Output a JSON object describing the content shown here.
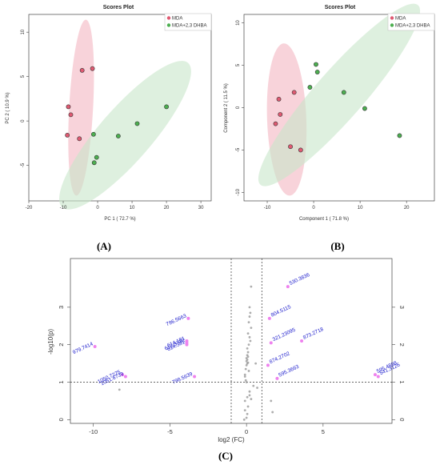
{
  "chart_data": [
    {
      "panel": "(A)",
      "type": "scatter",
      "title": "Scores Plot",
      "xlabel": "PC 1 ( 72.7 %)",
      "ylabel": "PC 2 ( 10.9 %)",
      "xlim": [
        -20,
        33
      ],
      "ylim": [
        -9,
        12
      ],
      "xticks": [
        -20,
        -10,
        0,
        10,
        20,
        30
      ],
      "yticks": [
        -5,
        0,
        5,
        10
      ],
      "legend_position": "top-right",
      "series": [
        {
          "name": "MDA",
          "color": "#e05a72",
          "ellipse_color": "#f4b6c2",
          "points": [
            [
              -4.5,
              5.7
            ],
            [
              -1.5,
              5.9
            ],
            [
              -8.5,
              1.6
            ],
            [
              -7.8,
              0.7
            ],
            [
              -8.8,
              -1.6
            ],
            [
              -5.3,
              -2.0
            ]
          ],
          "ellipse": {
            "cx": -4.8,
            "cy": 1.5,
            "rx": 10.0,
            "ry": 3.3,
            "angle": -82
          }
        },
        {
          "name": "MDA+2,3 DHBA",
          "color": "#4caf50",
          "ellipse_color": "#c8e6c9",
          "points": [
            [
              20.0,
              1.6
            ],
            [
              11.5,
              -0.3
            ],
            [
              6.0,
              -1.7
            ],
            [
              -1.2,
              -1.5
            ],
            [
              -0.3,
              -4.1
            ],
            [
              -1.0,
              -4.7
            ]
          ],
          "ellipse": {
            "cx": 8.0,
            "cy": -1.6,
            "rx": 20.0,
            "ry": 3.2,
            "angle": -24
          }
        }
      ]
    },
    {
      "panel": "(B)",
      "type": "scatter",
      "title": "Scores Plot",
      "xlabel": "Component 1 ( 71.8 %)",
      "ylabel": "Component 2 ( 11.5 %)",
      "xlim": [
        -15,
        26
      ],
      "ylim": [
        -11,
        11
      ],
      "xticks": [
        -10,
        0,
        10,
        20
      ],
      "yticks": [
        -10,
        -5,
        0,
        5,
        10
      ],
      "legend_position": "top-right",
      "series": [
        {
          "name": "MDA",
          "color": "#e05a72",
          "ellipse_color": "#f4b6c2",
          "points": [
            [
              -7.5,
              1.0
            ],
            [
              -4.2,
              1.8
            ],
            [
              -7.2,
              -0.8
            ],
            [
              -8.2,
              -1.9
            ],
            [
              -5.0,
              -4.6
            ],
            [
              -2.8,
              -5.0
            ]
          ],
          "ellipse": {
            "cx": -5.8,
            "cy": -1.4,
            "rx": 9.0,
            "ry": 4.2,
            "angle": -94
          }
        },
        {
          "name": "MDA+2,3 DHBA",
          "color": "#4caf50",
          "ellipse_color": "#c8e6c9",
          "points": [
            [
              0.5,
              5.1
            ],
            [
              0.8,
              4.2
            ],
            [
              -0.8,
              2.4
            ],
            [
              6.5,
              1.8
            ],
            [
              11.0,
              -0.1
            ],
            [
              18.5,
              -3.3
            ]
          ],
          "ellipse": {
            "cx": 5.5,
            "cy": 1.5,
            "rx": 20.0,
            "ry": 3.2,
            "angle": -32
          }
        }
      ]
    },
    {
      "panel": "(C)",
      "type": "scatter",
      "title": "",
      "xlabel": "log2 (FC)",
      "ylabel": "-log10(p)",
      "xlim": [
        -11.5,
        9.5
      ],
      "ylim": [
        -0.1,
        4.3
      ],
      "xticks": [
        -10,
        -5,
        0,
        5
      ],
      "yticks": [
        0,
        1,
        2,
        3
      ],
      "thresholds": {
        "x": [
          -1,
          1
        ],
        "y": 1
      },
      "significant_color": "#ee82ee",
      "label_color": "#1a1acc",
      "labeled_points": [
        {
          "label": "530.3836",
          "x": 2.7,
          "y": 3.55
        },
        {
          "label": "804.5115",
          "x": 1.5,
          "y": 2.7
        },
        {
          "label": "321.23095",
          "x": 1.6,
          "y": 2.05
        },
        {
          "label": "873.2718",
          "x": 3.6,
          "y": 2.1
        },
        {
          "label": "874.2702",
          "x": 1.4,
          "y": 1.45
        },
        {
          "label": "595.3663",
          "x": 2.0,
          "y": 1.1
        },
        {
          "label": "796.5663",
          "x": -3.8,
          "y": 2.7
        },
        {
          "label": "612.3732",
          "x": -3.9,
          "y": 2.05
        },
        {
          "label": "614.181",
          "x": -3.9,
          "y": 2.1
        },
        {
          "label": "614.381",
          "x": -3.9,
          "y": 2.0
        },
        {
          "label": "798.5639",
          "x": -3.4,
          "y": 1.15
        },
        {
          "label": "979.7414",
          "x": -9.9,
          "y": 1.95
        },
        {
          "label": "1050.7275",
          "x": -8.1,
          "y": 1.2
        },
        {
          "label": "1051.6739",
          "x": -7.9,
          "y": 1.15
        },
        {
          "label": "595.4898",
          "x": 8.4,
          "y": 1.2
        },
        {
          "label": "541.3126",
          "x": 8.6,
          "y": 1.15
        }
      ],
      "other_points": [
        [
          0.3,
          3.55
        ],
        [
          0.2,
          3.0
        ],
        [
          0.25,
          2.85
        ],
        [
          0.2,
          2.75
        ],
        [
          0.15,
          2.6
        ],
        [
          0.3,
          2.45
        ],
        [
          0.1,
          2.3
        ],
        [
          0.2,
          2.2
        ],
        [
          0.25,
          2.1
        ],
        [
          0.15,
          2.0
        ],
        [
          0.05,
          1.9
        ],
        [
          0.1,
          1.8
        ],
        [
          0.05,
          1.72
        ],
        [
          0.1,
          1.68
        ],
        [
          0.0,
          1.64
        ],
        [
          0.05,
          1.6
        ],
        [
          0.0,
          1.56
        ],
        [
          0.1,
          1.52
        ],
        [
          0.05,
          1.5
        ],
        [
          0.0,
          1.45
        ],
        [
          -0.05,
          1.35
        ],
        [
          -0.1,
          1.2
        ],
        [
          0.15,
          1.3
        ],
        [
          -0.1,
          1.15
        ],
        [
          0.6,
          1.5
        ],
        [
          -0.05,
          1.05
        ],
        [
          0.0,
          1.0
        ],
        [
          0.45,
          0.9
        ],
        [
          0.7,
          0.85
        ],
        [
          0.2,
          0.75
        ],
        [
          0.05,
          0.6
        ],
        [
          -0.1,
          0.5
        ],
        [
          0.3,
          0.55
        ],
        [
          0.1,
          0.35
        ],
        [
          -0.1,
          0.25
        ],
        [
          0.05,
          0.15
        ],
        [
          0.0,
          0.05
        ],
        [
          -0.15,
          0.0
        ],
        [
          0.2,
          0.65
        ],
        [
          1.6,
          0.5
        ],
        [
          1.7,
          0.2
        ],
        [
          -8.3,
          0.8
        ]
      ]
    }
  ]
}
